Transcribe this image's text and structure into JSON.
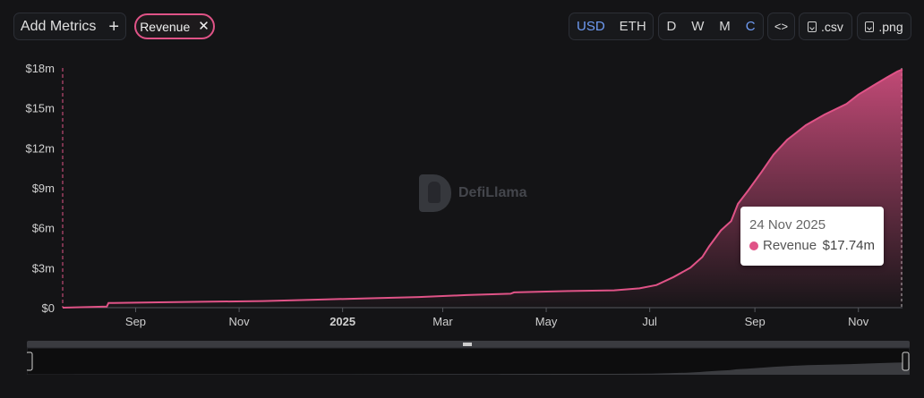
{
  "toolbar": {
    "add_metrics_label": "Add Metrics",
    "add_icon": "plus-icon",
    "chip_label": "Revenue",
    "chip_remove_icon": "close-icon",
    "currency_options": [
      "USD",
      "ETH"
    ],
    "currency_active": "USD",
    "period_options": [
      "D",
      "W",
      "M",
      "C"
    ],
    "period_active": "C",
    "embed_label": "<>",
    "csv_label": ".csv",
    "png_label": ".png"
  },
  "watermark": {
    "text": "DefiLlama"
  },
  "tooltip": {
    "date": "24 Nov 2025",
    "series": "Revenue",
    "value": "$17.74m"
  },
  "colors": {
    "accent": "#e05387",
    "active": "#6f9cf4",
    "background": "#141416"
  },
  "chart_data": {
    "type": "area",
    "title": "",
    "xlabel": "",
    "ylabel": "",
    "ylim": [
      0,
      18
    ],
    "y_unit": "$m",
    "y_ticks": [
      0,
      3,
      6,
      9,
      12,
      15,
      18
    ],
    "y_tick_labels": [
      "$0",
      "$3m",
      "$6m",
      "$9m",
      "$12m",
      "$15m",
      "$18m"
    ],
    "x_range": [
      "2024-07-20",
      "2025-11-27"
    ],
    "x_ticks": [
      "2024-09-01",
      "2024-11-01",
      "2025-01-01",
      "2025-03-01",
      "2025-05-01",
      "2025-07-01",
      "2025-09-01",
      "2025-11-01"
    ],
    "x_tick_labels": [
      "Sep",
      "Nov",
      "2025",
      "Mar",
      "May",
      "Jul",
      "Sep",
      "Nov"
    ],
    "grid": false,
    "series": [
      {
        "name": "Revenue",
        "color": "#e05387",
        "points": [
          [
            "2024-07-20",
            0.0
          ],
          [
            "2024-08-05",
            0.05
          ],
          [
            "2024-08-15",
            0.08
          ],
          [
            "2024-08-16",
            0.35
          ],
          [
            "2024-09-15",
            0.4
          ],
          [
            "2024-10-15",
            0.45
          ],
          [
            "2024-11-15",
            0.5
          ],
          [
            "2024-12-15",
            0.6
          ],
          [
            "2025-01-15",
            0.7
          ],
          [
            "2025-02-15",
            0.8
          ],
          [
            "2025-03-15",
            0.95
          ],
          [
            "2025-04-10",
            1.05
          ],
          [
            "2025-04-12",
            1.15
          ],
          [
            "2025-05-15",
            1.25
          ],
          [
            "2025-06-10",
            1.3
          ],
          [
            "2025-06-25",
            1.45
          ],
          [
            "2025-07-05",
            1.7
          ],
          [
            "2025-07-15",
            2.3
          ],
          [
            "2025-07-25",
            3.0
          ],
          [
            "2025-08-01",
            3.8
          ],
          [
            "2025-08-05",
            4.6
          ],
          [
            "2025-08-12",
            5.8
          ],
          [
            "2025-08-18",
            6.5
          ],
          [
            "2025-08-22",
            7.8
          ],
          [
            "2025-08-28",
            8.8
          ],
          [
            "2025-09-05",
            10.2
          ],
          [
            "2025-09-12",
            11.5
          ],
          [
            "2025-09-20",
            12.6
          ],
          [
            "2025-10-01",
            13.7
          ],
          [
            "2025-10-12",
            14.5
          ],
          [
            "2025-10-25",
            15.3
          ],
          [
            "2025-11-01",
            16.0
          ],
          [
            "2025-11-10",
            16.7
          ],
          [
            "2025-11-18",
            17.3
          ],
          [
            "2025-11-24",
            17.74
          ],
          [
            "2025-11-27",
            17.9
          ]
        ]
      }
    ]
  }
}
